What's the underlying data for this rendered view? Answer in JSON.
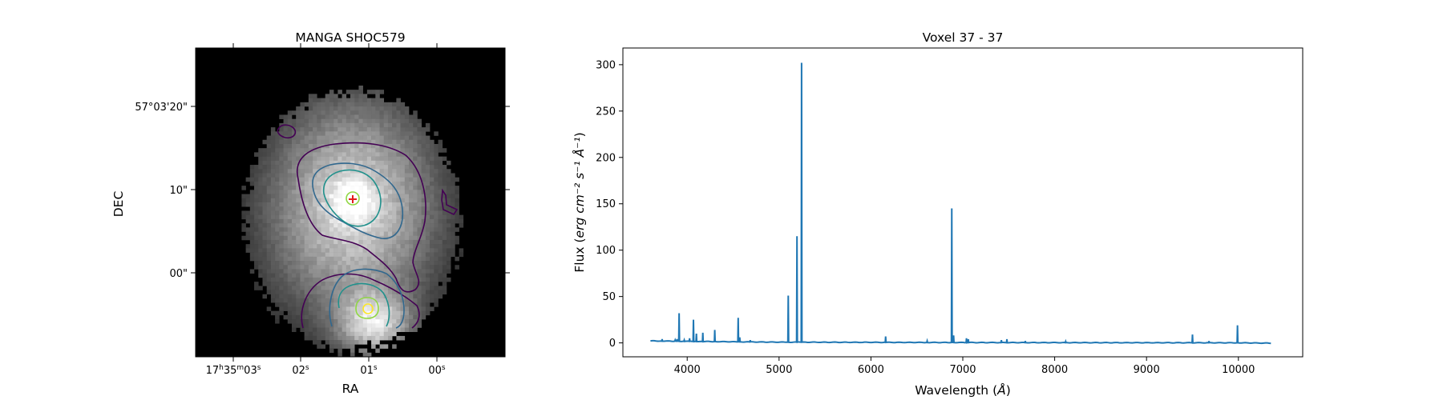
{
  "chart_data": [
    {
      "type": "heatmap",
      "title": "MANGA SHOC579",
      "xlabel": "RA",
      "ylabel": "DEC",
      "colormap": "gray",
      "ra_ticks": [
        {
          "h": "17",
          "m": "35",
          "s": "03"
        },
        {
          "s": "02"
        },
        {
          "s": "01"
        },
        {
          "s": "00"
        }
      ],
      "dec_ticks": [
        "57°03'20\"",
        "10\"",
        "00\""
      ],
      "contour_colors": [
        "#440154",
        "#31688e",
        "#21918c",
        "#90d743",
        "#fde725"
      ],
      "marker_color": "#e41a1c"
    },
    {
      "type": "line",
      "title": "Voxel 37 - 37",
      "xlabel": "Wavelength",
      "xlabel_unit": "Å",
      "ylabel": "Flux",
      "ylabel_unit": "erg cm⁻² s⁻¹ Å⁻¹",
      "xlim": [
        3300,
        10700
      ],
      "ylim": [
        -15,
        318
      ],
      "xticks": [
        4000,
        5000,
        6000,
        7000,
        8000,
        9000,
        10000
      ],
      "yticks": [
        0,
        50,
        100,
        150,
        200,
        250,
        300
      ],
      "line_color": "#1f77b4",
      "continuum": [
        [
          3600,
          2.2
        ],
        [
          3900,
          1.8
        ],
        [
          4500,
          1.2
        ],
        [
          5000,
          0.8
        ],
        [
          6000,
          0.6
        ],
        [
          7000,
          0.4
        ],
        [
          8000,
          0.3
        ],
        [
          9000,
          0.2
        ],
        [
          10000,
          0.1
        ],
        [
          10360,
          -0.3
        ]
      ],
      "lines": [
        {
          "x": 3727,
          "y": 4
        },
        {
          "x": 3869,
          "y": 3
        },
        {
          "x": 3889,
          "y": 4
        },
        {
          "x": 3912,
          "y": 32
        },
        {
          "x": 3968,
          "y": 3
        },
        {
          "x": 4026,
          "y": 5
        },
        {
          "x": 4068,
          "y": 25
        },
        {
          "x": 4100,
          "y": 10
        },
        {
          "x": 4170,
          "y": 11
        },
        {
          "x": 4300,
          "y": 14
        },
        {
          "x": 4555,
          "y": 27
        },
        {
          "x": 4572,
          "y": 6
        },
        {
          "x": 4686,
          "y": 3
        },
        {
          "x": 5100,
          "y": 51
        },
        {
          "x": 5195,
          "y": 115
        },
        {
          "x": 5245,
          "y": 302
        },
        {
          "x": 6160,
          "y": 7
        },
        {
          "x": 6612,
          "y": 2
        },
        {
          "x": 6880,
          "y": 145
        },
        {
          "x": 6900,
          "y": 8
        },
        {
          "x": 7040,
          "y": 5
        },
        {
          "x": 7060,
          "y": 4
        },
        {
          "x": 7420,
          "y": 3
        },
        {
          "x": 7480,
          "y": 4
        },
        {
          "x": 7680,
          "y": 2
        },
        {
          "x": 8120,
          "y": 1.5
        },
        {
          "x": 9500,
          "y": 9
        },
        {
          "x": 9680,
          "y": 2
        },
        {
          "x": 9990,
          "y": 19
        }
      ]
    }
  ]
}
